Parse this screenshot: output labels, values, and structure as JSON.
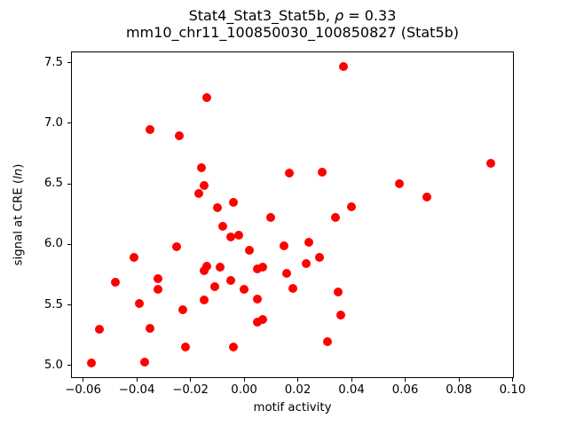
{
  "figure": {
    "title_line1": {
      "prefix": "Stat4_Stat3_Stat5b, ",
      "rho": "ρ",
      "suffix": " = 0.33"
    },
    "title_line2": "mm10_chr11_100850030_100850827 (Stat5b)",
    "xlabel": "motif activity",
    "ylabel": {
      "prefix": "signal at CRE (",
      "italic": "ln",
      "suffix": ")"
    }
  },
  "chart_data": {
    "type": "scatter",
    "title": "Stat4_Stat3_Stat5b, ρ = 0.33",
    "subtitle": "mm10_chr11_100850030_100850827 (Stat5b)",
    "correlation_rho": 0.33,
    "xlabel": "motif activity",
    "ylabel": "signal at CRE (ln)",
    "marker_color": "#ff0000",
    "marker_diameter_px": 10,
    "grid": false,
    "legend": "none",
    "xlim": [
      -0.0645,
      0.1005
    ],
    "ylim": [
      4.897,
      7.593
    ],
    "xticks": [
      -0.06,
      -0.04,
      -0.02,
      0.0,
      0.02,
      0.04,
      0.06,
      0.08,
      0.1
    ],
    "yticks": [
      5.0,
      5.5,
      6.0,
      6.5,
      7.0,
      7.5
    ],
    "points": [
      [
        0.037,
        7.47
      ],
      [
        -0.014,
        7.21
      ],
      [
        -0.035,
        6.95
      ],
      [
        -0.024,
        6.9
      ],
      [
        0.092,
        6.67
      ],
      [
        -0.016,
        6.63
      ],
      [
        0.029,
        6.6
      ],
      [
        0.017,
        6.59
      ],
      [
        0.058,
        6.5
      ],
      [
        -0.015,
        6.49
      ],
      [
        -0.017,
        6.42
      ],
      [
        0.068,
        6.39
      ],
      [
        -0.004,
        6.35
      ],
      [
        0.04,
        6.31
      ],
      [
        -0.01,
        6.3
      ],
      [
        0.034,
        6.22
      ],
      [
        0.01,
        6.22
      ],
      [
        -0.008,
        6.15
      ],
      [
        -0.002,
        6.08
      ],
      [
        -0.005,
        6.06
      ],
      [
        0.024,
        6.02
      ],
      [
        0.015,
        5.99
      ],
      [
        -0.025,
        5.98
      ],
      [
        0.002,
        5.95
      ],
      [
        -0.041,
        5.89
      ],
      [
        0.028,
        5.89
      ],
      [
        0.023,
        5.84
      ],
      [
        -0.014,
        5.82
      ],
      [
        -0.009,
        5.81
      ],
      [
        0.007,
        5.81
      ],
      [
        0.005,
        5.8
      ],
      [
        -0.015,
        5.78
      ],
      [
        0.016,
        5.76
      ],
      [
        -0.032,
        5.72
      ],
      [
        -0.005,
        5.7
      ],
      [
        -0.048,
        5.69
      ],
      [
        -0.011,
        5.65
      ],
      [
        0.018,
        5.64
      ],
      [
        -0.032,
        5.63
      ],
      [
        0.0,
        5.63
      ],
      [
        0.035,
        5.61
      ],
      [
        0.005,
        5.55
      ],
      [
        -0.015,
        5.54
      ],
      [
        -0.039,
        5.51
      ],
      [
        -0.023,
        5.46
      ],
      [
        0.036,
        5.42
      ],
      [
        0.007,
        5.38
      ],
      [
        0.005,
        5.36
      ],
      [
        -0.035,
        5.31
      ],
      [
        -0.054,
        5.3
      ],
      [
        0.031,
        5.2
      ],
      [
        -0.004,
        5.15
      ],
      [
        -0.022,
        5.15
      ],
      [
        -0.037,
        5.03
      ],
      [
        -0.057,
        5.02
      ]
    ]
  }
}
